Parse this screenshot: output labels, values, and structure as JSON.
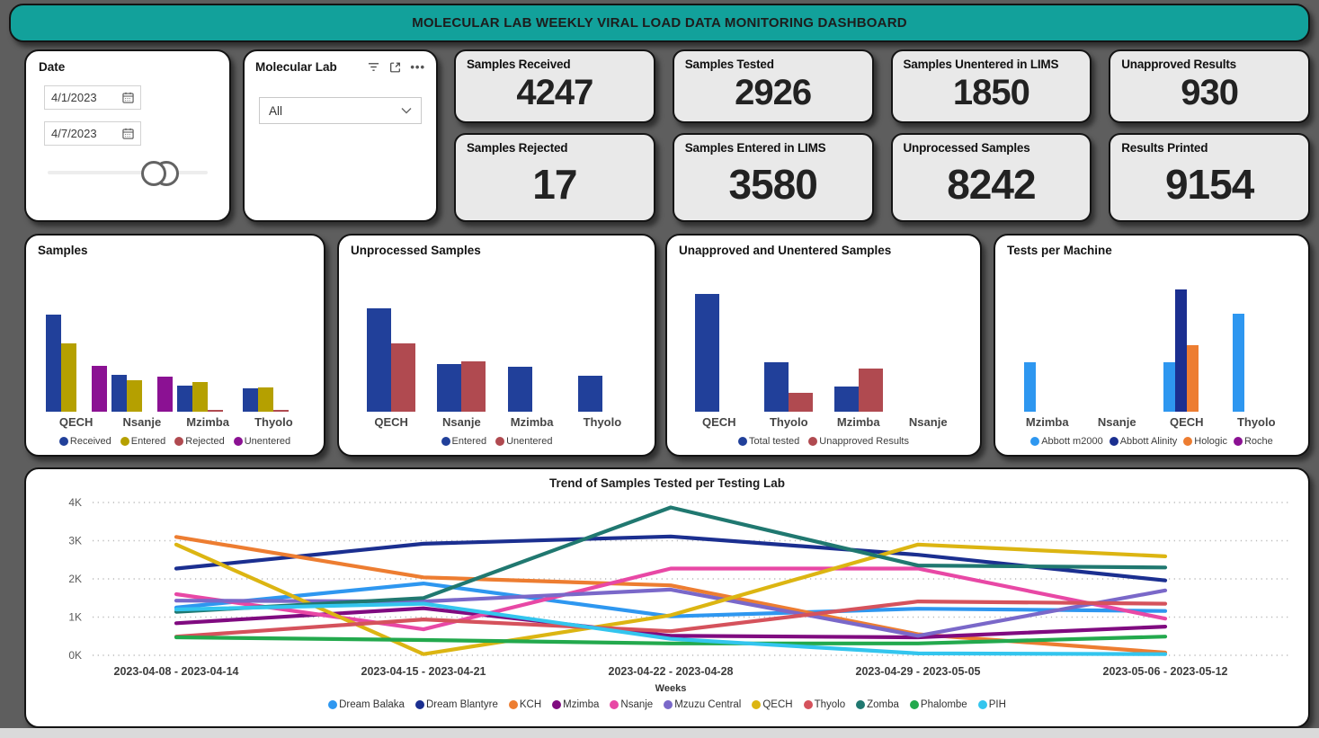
{
  "header": {
    "title": "MOLECULAR LAB WEEKLY VIRAL LOAD DATA MONITORING DASHBOARD"
  },
  "theme": {
    "accent_teal": "#12A19B",
    "kpi_card_bg": "#e9e9e9",
    "canvas_gray": "#5e5e5e"
  },
  "filters": {
    "date": {
      "title": "Date",
      "start_value": "4/1/2023",
      "end_value": "4/7/2023"
    },
    "molecular_lab": {
      "title": "Molecular Lab",
      "selected": "All"
    }
  },
  "kpis": [
    {
      "label": "Samples Received",
      "value": "4247"
    },
    {
      "label": "Samples Tested",
      "value": "2926"
    },
    {
      "label": "Samples Unentered in LIMS",
      "value": "1850"
    },
    {
      "label": "Unapproved Results",
      "value": "930"
    },
    {
      "label": "Samples Rejected",
      "value": "17"
    },
    {
      "label": "Samples Entered in LIMS",
      "value": "3580"
    },
    {
      "label": "Unprocessed Samples",
      "value": "8242"
    },
    {
      "label": "Results Printed",
      "value": "9154"
    }
  ],
  "chart_data": [
    {
      "id": "samples",
      "type": "bar",
      "title": "Samples",
      "categories": [
        "QECH",
        "Nsanje",
        "Mzimba",
        "Thyolo"
      ],
      "series": [
        {
          "name": "Received",
          "color": "#21409A",
          "values": [
            2600,
            980,
            700,
            630
          ]
        },
        {
          "name": "Entered",
          "color": "#B5A000",
          "values": [
            1830,
            850,
            800,
            650
          ]
        },
        {
          "name": "Rejected",
          "color": "#B04A50",
          "values": [
            0,
            0,
            50,
            40
          ]
        },
        {
          "name": "Unentered",
          "color": "#8B1193",
          "values": [
            1230,
            930,
            0,
            0
          ]
        }
      ],
      "ylim": [
        0,
        3600
      ],
      "legend_position": "bottom"
    },
    {
      "id": "unprocessed",
      "type": "bar",
      "title": "Unprocessed Samples",
      "categories": [
        "QECH",
        "Nsanje",
        "Mzimba",
        "Thyolo"
      ],
      "series": [
        {
          "name": "Entered",
          "color": "#21409A",
          "values": [
            2750,
            1280,
            1200,
            950
          ]
        },
        {
          "name": "Unentered",
          "color": "#B04A50",
          "values": [
            1830,
            1350,
            0,
            0
          ]
        }
      ],
      "ylim": [
        0,
        3600
      ],
      "legend_position": "bottom"
    },
    {
      "id": "unapproved",
      "type": "bar",
      "title": "Unapproved and Unentered Samples",
      "categories": [
        "QECH",
        "Thyolo",
        "Mzimba",
        "Nsanje"
      ],
      "series": [
        {
          "name": "Total tested",
          "color": "#21409A",
          "values": [
            2540,
            1060,
            540,
            0
          ]
        },
        {
          "name": "Unapproved Results",
          "color": "#B04A50",
          "values": [
            0,
            400,
            920,
            0
          ]
        }
      ],
      "ylim": [
        0,
        2900
      ],
      "legend_position": "bottom"
    },
    {
      "id": "machines",
      "type": "bar",
      "title": "Tests per Machine",
      "categories": [
        "Mzimba",
        "Nsanje",
        "QECH",
        "Thyolo"
      ],
      "series": [
        {
          "name": "Abbott m2000",
          "color": "#2E97F0",
          "values": [
            530,
            0,
            530,
            1050
          ]
        },
        {
          "name": "Abbott Alinity",
          "color": "#1B2F90",
          "values": [
            0,
            0,
            1310,
            0
          ]
        },
        {
          "name": "Hologic",
          "color": "#ED7D31",
          "values": [
            0,
            0,
            720,
            0
          ]
        },
        {
          "name": "Roche",
          "color": "#8B1193",
          "values": [
            0,
            0,
            0,
            0
          ]
        }
      ],
      "ylim": [
        0,
        1450
      ],
      "legend_position": "bottom"
    },
    {
      "id": "trend",
      "type": "line",
      "title": "Trend of Samples Tested per Testing Lab",
      "xlabel": "Weeks",
      "ylim": [
        0,
        4000
      ],
      "yticks": [
        "0K",
        "1K",
        "2K",
        "3K",
        "4K"
      ],
      "grid": "dotted",
      "legend_position": "bottom",
      "categories": [
        "2023-04-08 - 2023-04-14",
        "2023-04-15 - 2023-04-21",
        "2023-04-22 - 2023-04-28",
        "2023-04-29 - 2023-05-05",
        "2023-05-06 - 2023-05-12"
      ],
      "series": [
        {
          "name": "Dream Balaka",
          "color": "#2E97F0",
          "values": [
            1250,
            1880,
            1020,
            1220,
            1160
          ]
        },
        {
          "name": "Dream Blantyre",
          "color": "#1B2F90",
          "values": [
            2270,
            2920,
            3110,
            2630,
            1960
          ]
        },
        {
          "name": "KCH",
          "color": "#ED7D31",
          "values": [
            3100,
            2040,
            1830,
            550,
            70
          ]
        },
        {
          "name": "Mzimba",
          "color": "#800B80",
          "values": [
            840,
            1230,
            510,
            470,
            750
          ]
        },
        {
          "name": "Nsanje",
          "color": "#E848A5",
          "values": [
            1600,
            680,
            2270,
            2270,
            960
          ]
        },
        {
          "name": "Mzuzu Central",
          "color": "#7A68C9",
          "values": [
            1430,
            1410,
            1720,
            510,
            1700
          ]
        },
        {
          "name": "QECH",
          "color": "#DCB512",
          "values": [
            2900,
            30,
            1050,
            2900,
            2590
          ]
        },
        {
          "name": "Thyolo",
          "color": "#D5525C",
          "values": [
            490,
            940,
            630,
            1410,
            1350
          ]
        },
        {
          "name": "Zomba",
          "color": "#207870",
          "values": [
            1140,
            1500,
            3870,
            2350,
            2300
          ]
        },
        {
          "name": "Phalombe",
          "color": "#23A94D",
          "values": [
            470,
            400,
            310,
            310,
            490
          ]
        },
        {
          "name": "PIH",
          "color": "#33C5EE",
          "values": [
            1200,
            1350,
            430,
            50,
            30
          ]
        }
      ]
    }
  ]
}
